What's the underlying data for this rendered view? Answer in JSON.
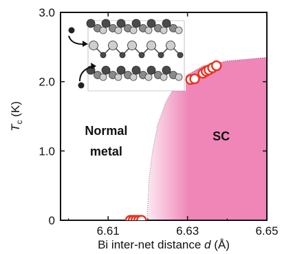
{
  "chart_data": {
    "type": "scatter",
    "xlabel": {
      "prefix": "Bi inter-net distance ",
      "var": "d",
      "suffix": " (Å)"
    },
    "ylabel": {
      "var": "T",
      "sub": "c",
      "suffix": " (K)"
    },
    "xlim": [
      6.598,
      6.65
    ],
    "ylim": [
      0,
      3.0
    ],
    "xticks": [
      6.61,
      6.63,
      6.65
    ],
    "yticks": [
      0,
      1.0,
      2.0,
      3.0
    ],
    "xtick_labels": [
      "6.61",
      "6.63",
      "6.65"
    ],
    "ytick_labels": [
      "0",
      "1.0",
      "2.0",
      "3.0"
    ],
    "grid": false,
    "series": [
      {
        "points": [
          {
            "x": 6.6156,
            "y": 0
          },
          {
            "x": 6.6163,
            "y": 0
          },
          {
            "x": 6.617,
            "y": 0
          },
          {
            "x": 6.6177,
            "y": 0
          },
          {
            "x": 6.6184,
            "y": 0
          },
          {
            "x": 6.6308,
            "y": 2.03
          },
          {
            "x": 6.6318,
            "y": 2.04
          },
          {
            "x": 6.6339,
            "y": 2.12
          },
          {
            "x": 6.6347,
            "y": 2.15
          },
          {
            "x": 6.6354,
            "y": 2.17
          },
          {
            "x": 6.6363,
            "y": 2.2
          },
          {
            "x": 6.6373,
            "y": 2.23
          }
        ]
      }
    ],
    "phase_boundary": {
      "onset_x": 6.6198,
      "top_y": 2.35,
      "curve": [
        {
          "x": 6.6198,
          "y": 0
        },
        {
          "x": 6.6203,
          "y": 0.6
        },
        {
          "x": 6.6212,
          "y": 1.0
        },
        {
          "x": 6.6225,
          "y": 1.38
        },
        {
          "x": 6.6245,
          "y": 1.7
        },
        {
          "x": 6.627,
          "y": 1.95
        },
        {
          "x": 6.63,
          "y": 2.1
        },
        {
          "x": 6.634,
          "y": 2.23
        },
        {
          "x": 6.64,
          "y": 2.3
        },
        {
          "x": 6.65,
          "y": 2.35
        }
      ]
    },
    "regions": [
      {
        "lines": [
          "Normal",
          "metal"
        ],
        "x": 6.6095,
        "y": 1.23
      },
      {
        "lines": [
          "SC"
        ],
        "x": 6.6385,
        "y": 1.15
      }
    ],
    "colors": {
      "marker_edge": "#e8321e",
      "marker_fill": "#ffffff",
      "sc_region": "#ef86b7",
      "axis": "#111111"
    }
  },
  "inset": {
    "icon": "crystal-structure-inset",
    "atom_colors": {
      "dark": "#4a4a4a",
      "mid": "#8a8a8a",
      "light": "#cfcfcf"
    }
  }
}
